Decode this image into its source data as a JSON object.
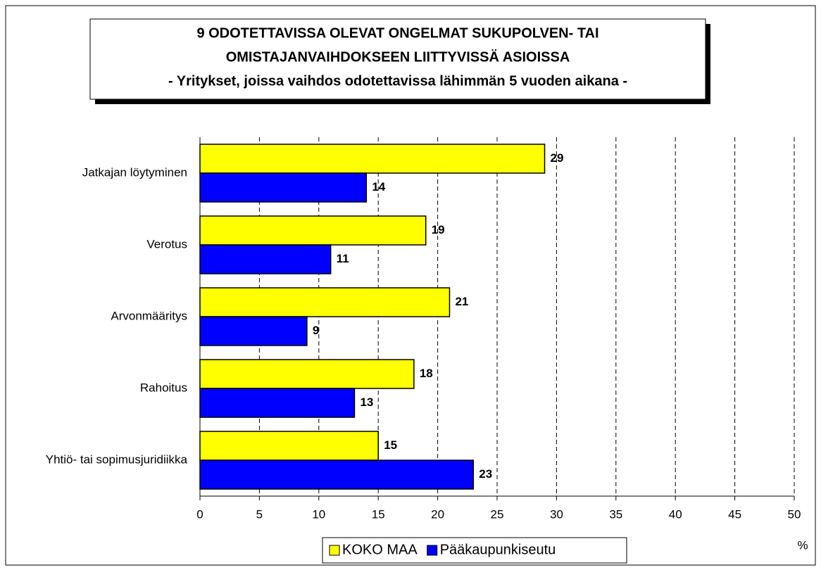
{
  "chart_data": {
    "type": "hbar",
    "title_lines": [
      "9 ODOTETTAVISSA OLEVAT ONGELMAT SUKUPOLVEN- TAI",
      "OMISTAJANVAIHDOKSEEN LIITTYVISSÄ ASIOISSA",
      "- Yritykset, joissa vaihdos odotettavissa lähimmän 5 vuoden aikana -"
    ],
    "categories": [
      "Jatkajan löytyminen",
      "Verotus",
      "Arvonmääritys",
      "Rahoitus",
      "Yhtiö- tai sopimusjuridiikka"
    ],
    "series": [
      {
        "name": "KOKO MAA",
        "color": "#ffff00",
        "values": [
          29,
          19,
          21,
          18,
          15
        ]
      },
      {
        "name": "Pääkaupunkiseutu",
        "color": "#0000ff",
        "values": [
          14,
          11,
          9,
          13,
          23
        ]
      }
    ],
    "xlim": [
      0,
      50
    ],
    "xticks": [
      0,
      5,
      10,
      15,
      20,
      25,
      30,
      35,
      40,
      45,
      50
    ],
    "xlabel": "%",
    "grid": true,
    "legend": "bottom"
  }
}
